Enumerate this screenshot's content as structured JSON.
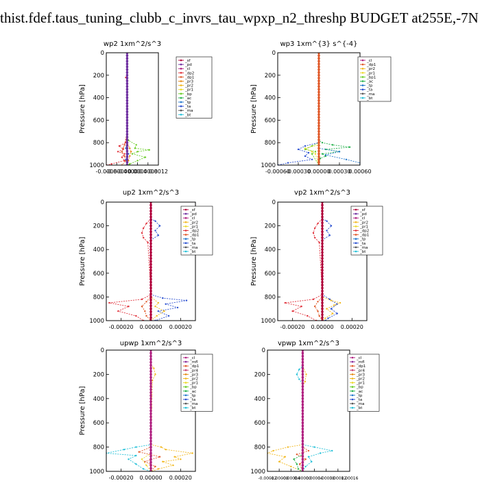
{
  "page": {
    "title": "thist.fdef.taus_tuning_clubb_c_invrs_tau_wpxp_n2_threshp  BUDGET at255E,-7N"
  },
  "colors": {
    "sf": "#b0003a",
    "pd": "#6e2fa0",
    "cl": "#b02080",
    "dp2": "#e0303a",
    "dp1": "#e05a2a",
    "pr3": "#e58a12",
    "pr2": "#f2b81e",
    "pr1": "#ecd92a",
    "bp": "#66cc22",
    "ac": "#22b04a",
    "tp": "#2277cc",
    "ta": "#2a4fd0",
    "ma": "#555555",
    "bt": "#22c0d8",
    "mfl": "#8a2a9a",
    "pr4": "#c83a6a"
  },
  "chart_data": [
    {
      "type": "line",
      "title": "wp2   1xm^2/s^3",
      "ylabel": "Pressure [hPa]",
      "ylim": [
        1000,
        0
      ],
      "xlim": [
        -0.0008,
        0.0012
      ],
      "xticks": [
        "-0.0008",
        "-0.0004",
        "-0.0000",
        "0.0004",
        "0.0008",
        "0.0012"
      ],
      "yticks": [
        "0",
        "200",
        "400",
        "600",
        "800",
        "1000"
      ],
      "legend": [
        "_sf",
        "_pd",
        "_cl",
        "_dp2",
        "_dp1",
        "_pr3",
        "_pr2",
        "_pr1",
        "_bp",
        "_ac",
        "_tp",
        "_ta",
        "_ma",
        "_bt"
      ],
      "series": [
        {
          "key": "bp",
          "y": [
            0,
            700,
            780,
            820,
            850,
            865,
            880,
            900,
            930,
            960,
            990,
            1000
          ],
          "x": [
            0,
            0,
            5e-05,
            0.00035,
            0.0003,
            0.00085,
            0.0004,
            0.0002,
            0.0007,
            0.0004,
            0.0001,
            0
          ]
        },
        {
          "key": "dp2",
          "y": [
            0,
            200,
            220,
            240,
            700,
            800,
            830,
            860,
            880,
            900,
            930,
            960,
            990,
            1000
          ],
          "x": [
            0,
            0,
            -5e-05,
            0,
            0,
            -5e-05,
            -0.0003,
            -0.00015,
            -0.00035,
            -0.0001,
            -0.0002,
            -0.0001,
            -0.0006,
            -0.0008
          ]
        },
        {
          "key": "dp1",
          "y": [
            0,
            700,
            820,
            850,
            880,
            920,
            960,
            1000
          ],
          "x": [
            0,
            0,
            -0.0001,
            -0.00015,
            -0.0002,
            -0.0001,
            -5e-05,
            -0.0002
          ]
        },
        {
          "key": "pr3",
          "y": [
            0,
            800,
            850,
            880,
            920,
            960,
            1000
          ],
          "x": [
            0,
            0,
            0.0001,
            0.00015,
            0.0001,
            5e-05,
            0
          ]
        },
        {
          "key": "tp",
          "y": [
            0,
            800,
            850,
            900,
            950,
            1000
          ],
          "x": [
            0,
            0,
            -5e-05,
            5e-05,
            -5e-05,
            0
          ]
        },
        {
          "key": "pd",
          "y": [
            0,
            1000
          ],
          "x": [
            0,
            0
          ]
        }
      ]
    },
    {
      "type": "line",
      "title": "wp3   1xm^{3} s^{-4}",
      "ylabel": "Pressure [hPa]",
      "ylim": [
        1000,
        0
      ],
      "xlim": [
        -0.0006,
        0.0006
      ],
      "xticks": [
        "-0.00060",
        "-0.00030",
        "0.00000",
        "0.00030",
        "0.00060"
      ],
      "yticks": [
        "0",
        "200",
        "400",
        "600",
        "800",
        "1000"
      ],
      "legend": [
        "_cl",
        "_dp1",
        "_pr2",
        "_pr1",
        "_bp1",
        "_ac",
        "_tp",
        "_ta",
        "_ma",
        "_bt"
      ],
      "series": [
        {
          "key": "ac",
          "y": [
            0,
            780,
            800,
            820,
            840,
            860,
            880,
            900,
            920,
            940,
            1000
          ],
          "x": [
            0,
            0,
            5e-05,
            0.0002,
            0.00045,
            0.0001,
            0.0003,
            5e-05,
            0.0001,
            2e-05,
            0
          ]
        },
        {
          "key": "bp",
          "y": [
            0,
            800,
            830,
            860,
            880,
            900,
            1000
          ],
          "x": [
            0,
            0,
            -0.0001,
            -0.0002,
            -5e-05,
            -0.0001,
            0
          ]
        },
        {
          "key": "ta",
          "y": [
            0,
            800,
            830,
            860,
            890,
            920,
            950,
            980,
            1000
          ],
          "x": [
            0,
            0,
            -0.0002,
            -0.0003,
            -0.00015,
            -0.0002,
            -0.0001,
            -0.00045,
            -0.0006
          ]
        },
        {
          "key": "tp",
          "y": [
            0,
            850,
            880,
            910,
            950,
            980,
            1000
          ],
          "x": [
            0,
            0,
            0.0003,
            0.0001,
            0.0004,
            0.0006,
            0.0006
          ]
        },
        {
          "key": "pr1",
          "y": [
            0,
            820,
            850,
            880,
            900,
            1000
          ],
          "x": [
            0,
            0,
            -0.0002,
            -0.0001,
            -5e-05,
            0
          ]
        },
        {
          "key": "dp1",
          "y": [
            0,
            1000
          ],
          "x": [
            0,
            0
          ]
        }
      ]
    },
    {
      "type": "line",
      "title": "up2   1xm^2/s^3",
      "ylabel": "Pressure [hPa]",
      "ylim": [
        1000,
        0
      ],
      "xlim": [
        -0.0003,
        0.0003
      ],
      "xticks": [
        "-0.00020",
        "0.00000",
        "0.00020"
      ],
      "yticks": [
        "0",
        "200",
        "400",
        "600",
        "800",
        "1000"
      ],
      "legend": [
        "_sf",
        "_pd",
        "_cl",
        "_pr2",
        "_pr1",
        "_dp2",
        "_dp1",
        "_tp",
        "_ta",
        "_ma",
        "_bt"
      ],
      "series": [
        {
          "key": "dp2",
          "y": [
            0,
            140,
            180,
            220,
            260,
            300,
            340,
            780,
            820,
            850,
            880,
            920,
            960,
            1000
          ],
          "x": [
            0,
            0,
            -3e-05,
            -5e-05,
            -6e-05,
            -5e-05,
            -2e-05,
            0,
            -6e-05,
            -0.00028,
            -0.00015,
            -0.00022,
            -0.0001,
            -5e-05
          ]
        },
        {
          "key": "ta",
          "y": [
            0,
            140,
            160,
            200,
            240,
            280,
            320,
            780,
            810,
            830,
            860,
            890,
            920,
            960,
            1000
          ],
          "x": [
            0,
            0,
            3e-05,
            6e-05,
            3e-05,
            5e-05,
            0,
            0,
            8e-05,
            0.00024,
            0.0001,
            0.00018,
            5e-05,
            0.00012,
            3e-05
          ]
        },
        {
          "key": "pr2",
          "y": [
            0,
            800,
            850,
            880,
            920,
            960,
            1000
          ],
          "x": [
            0,
            0,
            5e-05,
            3e-05,
            9e-05,
            4e-05,
            0
          ]
        },
        {
          "key": "dp1",
          "y": [
            0,
            800,
            840,
            880,
            920,
            960,
            1000
          ],
          "x": [
            0,
            0,
            -3e-05,
            -6e-05,
            -4e-05,
            -3e-05,
            0
          ]
        },
        {
          "key": "sf",
          "y": [
            0,
            1000
          ],
          "x": [
            0,
            0
          ]
        }
      ]
    },
    {
      "type": "line",
      "title": "vp2   1xm^2/s^3",
      "ylabel": "Pressure [hPa]",
      "ylim": [
        1000,
        0
      ],
      "xlim": [
        -0.0003,
        0.0003
      ],
      "xticks": [
        "-0.00020",
        "0.00000",
        "0.00020"
      ],
      "yticks": [
        "0",
        "200",
        "400",
        "600",
        "800",
        "1000"
      ],
      "legend": [
        "_sf",
        "_pd",
        "_cl",
        "_pr2",
        "_pr1",
        "_dp2",
        "_dp1",
        "_tp",
        "_ta",
        "_ma",
        "_bt"
      ],
      "series": [
        {
          "key": "dp2",
          "y": [
            0,
            140,
            180,
            220,
            260,
            300,
            340,
            780,
            820,
            850,
            880,
            920,
            960,
            1000
          ],
          "x": [
            0,
            0,
            -3e-05,
            -5e-05,
            -6e-05,
            -5e-05,
            -2e-05,
            0,
            -6e-05,
            -0.00025,
            -0.00014,
            -0.0002,
            -0.0001,
            -4e-05
          ]
        },
        {
          "key": "ta",
          "y": [
            0,
            140,
            160,
            200,
            240,
            280,
            320,
            780,
            820,
            860,
            900,
            940,
            980,
            1000
          ],
          "x": [
            0,
            0,
            3e-05,
            6e-05,
            3e-05,
            5e-05,
            0,
            0,
            5e-05,
            0.0001,
            6e-05,
            0.0001,
            4e-05,
            2e-05
          ]
        },
        {
          "key": "pr2",
          "y": [
            0,
            800,
            830,
            850,
            870,
            900,
            940,
            980,
            1000
          ],
          "x": [
            0,
            0,
            6e-05,
            0.00012,
            8e-05,
            3e-05,
            7e-05,
            2e-05,
            0
          ]
        },
        {
          "key": "dp1",
          "y": [
            0,
            800,
            840,
            880,
            920,
            960,
            1000
          ],
          "x": [
            0,
            0,
            -3e-05,
            -5e-05,
            -3e-05,
            -2e-05,
            0
          ]
        },
        {
          "key": "sf",
          "y": [
            0,
            1000
          ],
          "x": [
            0,
            0
          ]
        }
      ]
    },
    {
      "type": "line",
      "title": "upwp   1xm^2/s^3",
      "ylabel": "Pressure [hPa]",
      "ylim": [
        1000,
        0
      ],
      "xlim": [
        -0.0003,
        0.0003
      ],
      "xticks": [
        "-0.00020",
        "0.00000",
        "0.00020"
      ],
      "yticks": [
        "0",
        "200",
        "400",
        "600",
        "800",
        "1000"
      ],
      "legend": [
        "_cl",
        "_mfl",
        "_dp1",
        "_pr4",
        "_pr3",
        "_pr2",
        "_pr1",
        "_bp",
        "_ac",
        "_tp",
        "_ta",
        "_ma",
        "_bt"
      ],
      "series": [
        {
          "key": "pr2",
          "y": [
            0,
            120,
            150,
            200,
            250,
            780,
            800,
            820,
            850,
            880,
            900,
            920,
            950,
            980,
            1000
          ],
          "x": [
            0,
            0,
            2e-05,
            3e-05,
            1e-05,
            0,
            7e-05,
            0.0001,
            0.00028,
            0.00016,
            0.0002,
            8e-05,
            0.00015,
            5e-05,
            0
          ]
        },
        {
          "key": "bt",
          "y": [
            0,
            780,
            800,
            820,
            850,
            870,
            900,
            940,
            980,
            1000
          ],
          "x": [
            0,
            0,
            -0.0001,
            -0.00018,
            -0.0003,
            -0.0001,
            -0.00015,
            -0.0001,
            -5e-05,
            0
          ]
        },
        {
          "key": "dp1",
          "y": [
            0,
            800,
            840,
            880,
            920,
            960,
            1000
          ],
          "x": [
            0,
            0,
            -8e-05,
            6e-05,
            -4e-05,
            3e-05,
            0
          ]
        },
        {
          "key": "pr1",
          "y": [
            0,
            850,
            900,
            950,
            1000
          ],
          "x": [
            0,
            0,
            -6e-05,
            -3e-05,
            0
          ]
        },
        {
          "key": "cl",
          "y": [
            0,
            1000
          ],
          "x": [
            0,
            0
          ]
        }
      ]
    },
    {
      "type": "line",
      "title": "vpwp   1xm^2/s^3",
      "ylabel": "Pressure [hPa]",
      "ylim": [
        1000,
        0
      ],
      "xlim": [
        -0.00012,
        0.00016
      ],
      "xticks": [
        "-0.00012",
        "-0.00008",
        "-0.00004",
        "0.00000",
        "0.00004",
        "0.00008",
        "0.00012",
        "0.00016"
      ],
      "yticks": [
        "0",
        "200",
        "400",
        "600",
        "800",
        "1000"
      ],
      "legend": [
        "_cl",
        "_mfl",
        "_dp1",
        "_pr4",
        "_pr3",
        "_pr2",
        "_pr1",
        "_bp",
        "_ac",
        "_tp",
        "_ta",
        "_ma",
        "_bt"
      ],
      "series": [
        {
          "key": "bt",
          "y": [
            0,
            130,
            160,
            200,
            240,
            280,
            780,
            800,
            830,
            850,
            880,
            920,
            960,
            1000
          ],
          "x": [
            0,
            0,
            -1.2e-05,
            -2e-05,
            -1.2e-05,
            0,
            0,
            4e-05,
            0.0001,
            6e-05,
            2e-05,
            3e-05,
            1e-05,
            0
          ]
        },
        {
          "key": "pr2",
          "y": [
            0,
            130,
            200,
            260,
            300,
            780,
            800,
            830,
            850,
            880,
            920,
            960,
            1000
          ],
          "x": [
            0,
            0,
            1.2e-05,
            8e-06,
            0,
            0,
            -5e-05,
            -0.0001,
            -0.00012,
            -6e-05,
            -8e-05,
            -4e-05,
            0
          ]
        },
        {
          "key": "dp1",
          "y": [
            0,
            800,
            830,
            860,
            900,
            940,
            1000
          ],
          "x": [
            0,
            0,
            2e-05,
            -2e-05,
            1e-05,
            -1e-05,
            0
          ]
        },
        {
          "key": "ac",
          "y": [
            0,
            860,
            900,
            940,
            980,
            1000
          ],
          "x": [
            0,
            0,
            -3e-05,
            -2e-05,
            -1.5e-05,
            0
          ]
        },
        {
          "key": "cl",
          "y": [
            0,
            1000
          ],
          "x": [
            0,
            0
          ]
        }
      ]
    }
  ]
}
